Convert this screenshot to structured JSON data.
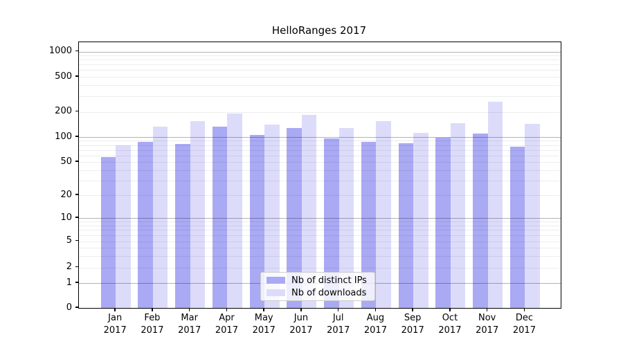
{
  "title": "HelloRanges 2017",
  "chart_data": {
    "type": "bar",
    "title": "HelloRanges 2017",
    "xlabel": "",
    "ylabel": "",
    "yscale": "symlog",
    "ylim": [
      0,
      1300
    ],
    "grid": true,
    "legend_position": "lower center",
    "categories": [
      "Jan 2017",
      "Feb 2017",
      "Mar 2017",
      "Apr 2017",
      "May 2017",
      "Jun 2017",
      "Jul 2017",
      "Aug 2017",
      "Sep 2017",
      "Oct 2017",
      "Nov 2017",
      "Dec 2017"
    ],
    "yticks": [
      0,
      1,
      2,
      5,
      10,
      20,
      50,
      100,
      200,
      500,
      1000
    ],
    "series": [
      {
        "name": "Nb of distinct IPs",
        "color": "#a9a9f4",
        "values": [
          57,
          87,
          83,
          134,
          105,
          129,
          97,
          87,
          84,
          98,
          110,
          76
        ]
      },
      {
        "name": "Nb of downloads",
        "color": "#dcdcfa",
        "values": [
          79,
          133,
          155,
          192,
          141,
          185,
          128,
          154,
          112,
          145,
          262,
          144
        ]
      }
    ]
  },
  "legend": {
    "item_1": "Nb of distinct IPs",
    "item_2": "Nb of downloads"
  }
}
